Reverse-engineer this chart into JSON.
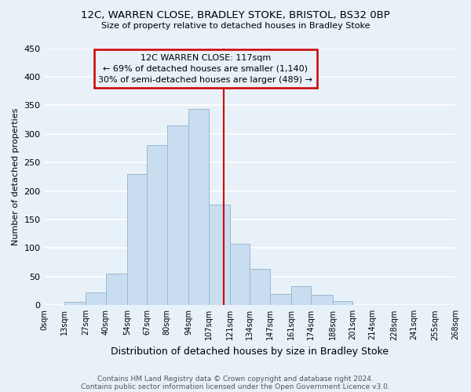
{
  "title": "12C, WARREN CLOSE, BRADLEY STOKE, BRISTOL, BS32 0BP",
  "subtitle": "Size of property relative to detached houses in Bradley Stoke",
  "xlabel": "Distribution of detached houses by size in Bradley Stoke",
  "ylabel": "Number of detached properties",
  "footnote1": "Contains HM Land Registry data © Crown copyright and database right 2024.",
  "footnote2": "Contains public sector information licensed under the Open Government Licence v3.0.",
  "bar_edges": [
    0,
    13,
    27,
    40,
    54,
    67,
    80,
    94,
    107,
    121,
    134,
    147,
    161,
    174,
    188,
    201,
    214,
    228,
    241,
    255,
    268
  ],
  "bar_heights": [
    0,
    6,
    22,
    55,
    230,
    280,
    315,
    343,
    176,
    108,
    63,
    19,
    33,
    18,
    7,
    0,
    0,
    0,
    0,
    0
  ],
  "bar_color": "#c8ddef",
  "bar_edge_color": "#9ab8cf",
  "tick_labels": [
    "0sqm",
    "13sqm",
    "27sqm",
    "40sqm",
    "54sqm",
    "67sqm",
    "80sqm",
    "94sqm",
    "107sqm",
    "121sqm",
    "134sqm",
    "147sqm",
    "161sqm",
    "174sqm",
    "188sqm",
    "201sqm",
    "214sqm",
    "228sqm",
    "241sqm",
    "255sqm",
    "268sqm"
  ],
  "property_size": 117,
  "vline_color": "#cc0000",
  "annotation_title": "12C WARREN CLOSE: 117sqm",
  "annotation_line1": "← 69% of detached houses are smaller (1,140)",
  "annotation_line2": "30% of semi-detached houses are larger (489) →",
  "annotation_box_color": "#cc0000",
  "annotation_box_facecolor": "#e8f0f8",
  "ylim": [
    0,
    450
  ],
  "yticks": [
    0,
    50,
    100,
    150,
    200,
    250,
    300,
    350,
    400,
    450
  ],
  "bg_color": "#e8f0f8",
  "grid_color": "#ffffff",
  "title_fontsize": 9.5,
  "subtitle_fontsize": 8,
  "ylabel_fontsize": 8,
  "xlabel_fontsize": 9,
  "tick_fontsize": 7,
  "annotation_fontsize": 8,
  "footnote_fontsize": 6.5
}
